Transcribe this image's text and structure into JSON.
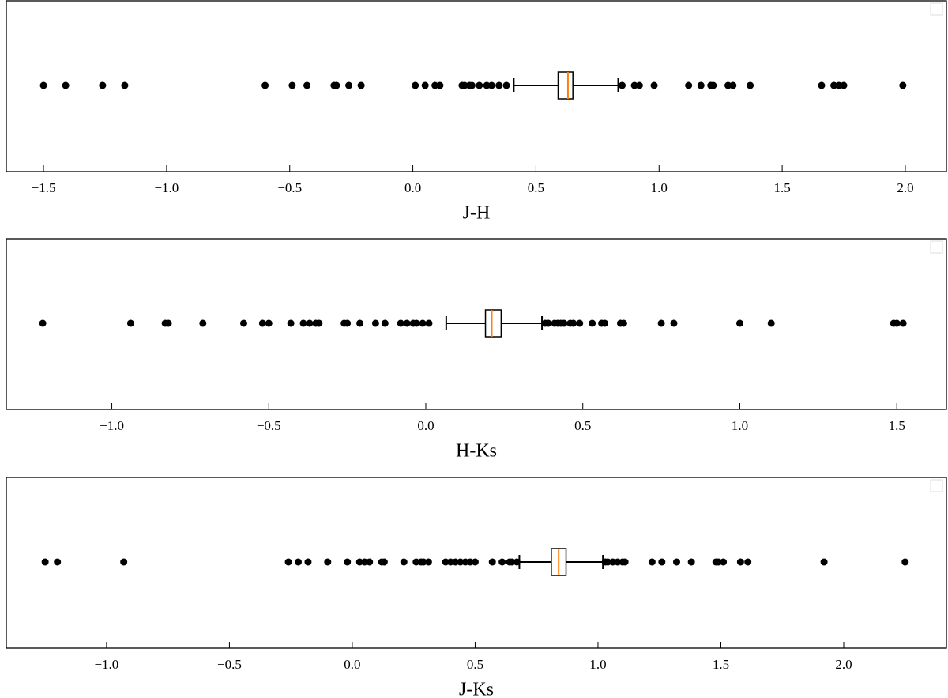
{
  "chart_data": [
    {
      "type": "box",
      "xlabel": "J-H",
      "xlim": [
        -1.651,
        2.167
      ],
      "xticks": [
        {
          "value": -1.5,
          "label": "−1.5"
        },
        {
          "value": -1.0,
          "label": "−1.0"
        },
        {
          "value": -0.5,
          "label": "−0.5"
        },
        {
          "value": 0.0,
          "label": "0.0"
        },
        0.5,
        {
          "value": 1.0,
          "label": "1.0"
        },
        1.5,
        {
          "value": 2.0,
          "label": "2.0"
        }
      ],
      "whisker_low": 0.41,
      "q1": 0.59,
      "median": 0.63,
      "q3": 0.65,
      "whisker_high": 0.834,
      "outliers": [
        -1.5,
        -1.41,
        -1.26,
        -1.17,
        -0.6,
        -0.49,
        -0.43,
        -0.32,
        -0.31,
        -0.26,
        -0.21,
        0.01,
        0.05,
        0.09,
        0.11,
        0.2,
        0.21,
        0.23,
        0.24,
        0.27,
        0.3,
        0.32,
        0.35,
        0.38,
        0.85,
        0.9,
        0.92,
        0.98,
        1.12,
        1.17,
        1.21,
        1.22,
        1.28,
        1.3,
        1.37,
        1.66,
        1.71,
        1.73,
        1.75,
        1.99
      ],
      "box_color": "#000000",
      "median_color": "#ff7f0e",
      "point_color": "#000000"
    },
    {
      "type": "box",
      "xlabel": "H-Ks",
      "xlim": [
        -1.336,
        1.658
      ],
      "xticks": [
        {
          "value": -1.0,
          "label": "−1.0"
        },
        {
          "value": -0.5,
          "label": "−0.5"
        },
        {
          "value": 0.0,
          "label": "0.0"
        },
        0.5,
        {
          "value": 1.0,
          "label": "1.0"
        },
        1.5
      ],
      "whisker_low": 0.065,
      "q1": 0.19,
      "median": 0.21,
      "q3": 0.24,
      "whisker_high": 0.37,
      "outliers": [
        -1.22,
        -0.94,
        -0.83,
        -0.82,
        -0.71,
        -0.58,
        -0.52,
        -0.5,
        -0.43,
        -0.39,
        -0.37,
        -0.35,
        -0.34,
        -0.26,
        -0.25,
        -0.21,
        -0.16,
        -0.13,
        -0.08,
        -0.06,
        -0.04,
        -0.03,
        -0.01,
        0.01,
        0.38,
        0.39,
        0.41,
        0.42,
        0.43,
        0.44,
        0.46,
        0.47,
        0.49,
        0.53,
        0.56,
        0.57,
        0.62,
        0.63,
        0.75,
        0.79,
        1.0,
        1.1,
        1.49,
        1.5,
        1.52
      ],
      "box_color": "#000000",
      "median_color": "#ff7f0e",
      "point_color": "#000000"
    },
    {
      "type": "box",
      "xlabel": "J-Ks",
      "xlim": [
        -1.408,
        2.418
      ],
      "xticks": [
        {
          "value": -1.0,
          "label": "−1.0"
        },
        {
          "value": -0.5,
          "label": "−0.5"
        },
        {
          "value": 0.0,
          "label": "0.0"
        },
        0.5,
        {
          "value": 1.0,
          "label": "1.0"
        },
        1.5,
        {
          "value": 2.0,
          "label": "2.0"
        }
      ],
      "whisker_low": 0.68,
      "q1": 0.81,
      "median": 0.84,
      "q3": 0.87,
      "whisker_high": 1.02,
      "outliers": [
        -1.25,
        -1.2,
        -0.93,
        -0.26,
        -0.22,
        -0.18,
        -0.1,
        -0.02,
        0.03,
        0.05,
        0.07,
        0.12,
        0.13,
        0.21,
        0.26,
        0.28,
        0.29,
        0.31,
        0.38,
        0.4,
        0.42,
        0.44,
        0.46,
        0.48,
        0.5,
        0.57,
        0.61,
        0.64,
        0.65,
        0.67,
        1.03,
        1.04,
        1.06,
        1.08,
        1.1,
        1.11,
        1.22,
        1.26,
        1.32,
        1.38,
        1.48,
        1.49,
        1.51,
        1.58,
        1.61,
        1.92,
        2.25
      ],
      "box_color": "#000000",
      "median_color": "#ff7f0e",
      "point_color": "#000000"
    }
  ]
}
